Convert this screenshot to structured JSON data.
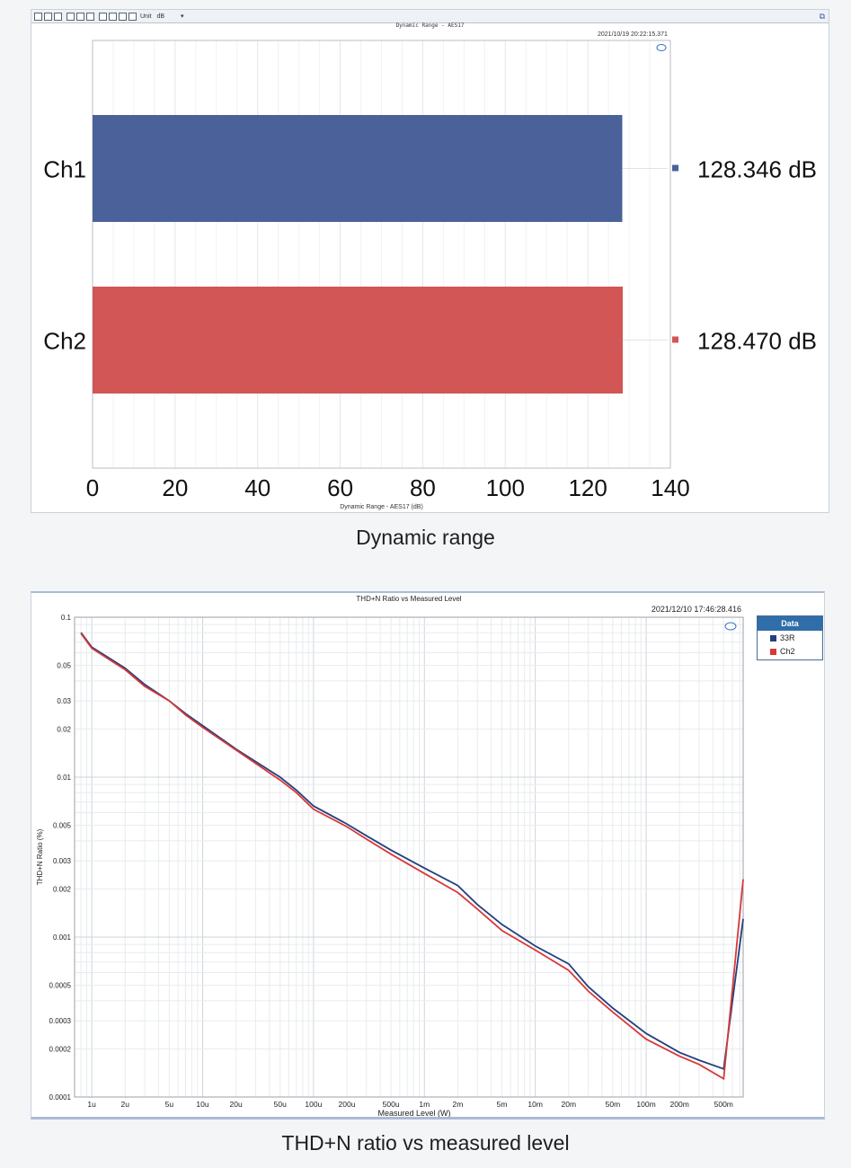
{
  "panel1": {
    "toolbar": {
      "unit_label": "Unit",
      "unit_value": "dB",
      "dropdown_glyph": "▾"
    },
    "title": "Dynamic Range - AES17",
    "timestamp": "2021/10/19 20:22:15.371",
    "caption": "Dynamic range"
  },
  "panel2": {
    "title": "THD+N Ratio vs Measured Level",
    "timestamp": "2021/12/10 17:46:28.416",
    "legend_title": "Data",
    "caption": "THD+N ratio vs measured level"
  },
  "colors": {
    "ch1_blue": "#4a6199",
    "ch2_red": "#d25656",
    "line_blue": "#23407e",
    "line_red": "#d83838",
    "legend_header": "#2f6ea8"
  },
  "icons": [
    "toolbar-button-icon",
    "popout-icon",
    "ap-logo-icon"
  ],
  "chart_data": [
    {
      "type": "bar",
      "orientation": "horizontal",
      "title": "Dynamic Range - AES17",
      "xlabel": "Dynamic Range - AES17 (dB)",
      "categories": [
        "Ch1",
        "Ch2"
      ],
      "values": [
        128.346,
        128.47
      ],
      "value_labels": [
        "128.346 dB",
        "128.470 dB"
      ],
      "colors": [
        "#4a6199",
        "#d25656"
      ],
      "xlim": [
        0,
        140
      ],
      "xticks": [
        "0",
        "20",
        "40",
        "60",
        "80",
        "100",
        "120",
        "140"
      ],
      "grid": true
    },
    {
      "type": "line",
      "title": "THD+N Ratio vs Measured Level",
      "xlabel": "Measured Level (W)",
      "ylabel": "THD+N Ratio (%)",
      "xscale": "log",
      "yscale": "log",
      "xlim": [
        7e-07,
        0.75
      ],
      "ylim": [
        0.0001,
        0.1
      ],
      "xticks": [
        {
          "v": 1e-06,
          "label": "1u"
        },
        {
          "v": 2e-06,
          "label": "2u"
        },
        {
          "v": 5e-06,
          "label": "5u"
        },
        {
          "v": 1e-05,
          "label": "10u"
        },
        {
          "v": 2e-05,
          "label": "20u"
        },
        {
          "v": 5e-05,
          "label": "50u"
        },
        {
          "v": 0.0001,
          "label": "100u"
        },
        {
          "v": 0.0002,
          "label": "200u"
        },
        {
          "v": 0.0005,
          "label": "500u"
        },
        {
          "v": 0.001,
          "label": "1m"
        },
        {
          "v": 0.002,
          "label": "2m"
        },
        {
          "v": 0.005,
          "label": "5m"
        },
        {
          "v": 0.01,
          "label": "10m"
        },
        {
          "v": 0.02,
          "label": "20m"
        },
        {
          "v": 0.05,
          "label": "50m"
        },
        {
          "v": 0.1,
          "label": "100m"
        },
        {
          "v": 0.2,
          "label": "200m"
        },
        {
          "v": 0.5,
          "label": "500m"
        }
      ],
      "yticks": [
        {
          "v": 0.1,
          "label": "0.1"
        },
        {
          "v": 0.05,
          "label": "0.05"
        },
        {
          "v": 0.03,
          "label": "0.03"
        },
        {
          "v": 0.02,
          "label": "0.02"
        },
        {
          "v": 0.01,
          "label": "0.01"
        },
        {
          "v": 0.005,
          "label": "0.005"
        },
        {
          "v": 0.003,
          "label": "0.003"
        },
        {
          "v": 0.002,
          "label": "0.002"
        },
        {
          "v": 0.001,
          "label": "0.001"
        },
        {
          "v": 0.0005,
          "label": "0.0005"
        },
        {
          "v": 0.0003,
          "label": "0.0003"
        },
        {
          "v": 0.0002,
          "label": "0.0002"
        },
        {
          "v": 0.0001,
          "label": "0.0001"
        }
      ],
      "grid": true,
      "legend_position": "right",
      "series": [
        {
          "name": "33R",
          "color": "#23407e",
          "points": [
            [
              8e-07,
              0.08
            ],
            [
              1e-06,
              0.065
            ],
            [
              2e-06,
              0.048
            ],
            [
              3e-06,
              0.038
            ],
            [
              5e-06,
              0.03
            ],
            [
              7e-06,
              0.025
            ],
            [
              1e-05,
              0.021
            ],
            [
              2e-05,
              0.015
            ],
            [
              5e-05,
              0.01
            ],
            [
              7e-05,
              0.0083
            ],
            [
              0.0001,
              0.0066
            ],
            [
              0.0002,
              0.0051
            ],
            [
              0.0003,
              0.0043
            ],
            [
              0.0005,
              0.0035
            ],
            [
              0.001,
              0.0027
            ],
            [
              0.002,
              0.0021
            ],
            [
              0.003,
              0.0016
            ],
            [
              0.005,
              0.0012
            ],
            [
              0.01,
              0.00088
            ],
            [
              0.02,
              0.00068
            ],
            [
              0.03,
              0.00049
            ],
            [
              0.05,
              0.00036
            ],
            [
              0.1,
              0.00025
            ],
            [
              0.2,
              0.00019
            ],
            [
              0.3,
              0.00017
            ],
            [
              0.5,
              0.00015
            ],
            [
              0.75,
              0.0013
            ]
          ]
        },
        {
          "name": "Ch2",
          "color": "#d83838",
          "points": [
            [
              8e-07,
              0.079
            ],
            [
              1e-06,
              0.064
            ],
            [
              2e-06,
              0.047
            ],
            [
              3e-06,
              0.037
            ],
            [
              5e-06,
              0.03
            ],
            [
              7e-06,
              0.0245
            ],
            [
              1e-05,
              0.0205
            ],
            [
              2e-05,
              0.0148
            ],
            [
              5e-05,
              0.0096
            ],
            [
              7e-05,
              0.008
            ],
            [
              0.0001,
              0.0063
            ],
            [
              0.0002,
              0.0049
            ],
            [
              0.0003,
              0.0041
            ],
            [
              0.0005,
              0.0033
            ],
            [
              0.001,
              0.0025
            ],
            [
              0.002,
              0.0019
            ],
            [
              0.003,
              0.0015
            ],
            [
              0.005,
              0.0011
            ],
            [
              0.01,
              0.00083
            ],
            [
              0.02,
              0.00062
            ],
            [
              0.03,
              0.00046
            ],
            [
              0.05,
              0.00034
            ],
            [
              0.1,
              0.00023
            ],
            [
              0.2,
              0.00018
            ],
            [
              0.3,
              0.00016
            ],
            [
              0.5,
              0.00013
            ],
            [
              0.75,
              0.0023
            ]
          ]
        }
      ]
    }
  ]
}
